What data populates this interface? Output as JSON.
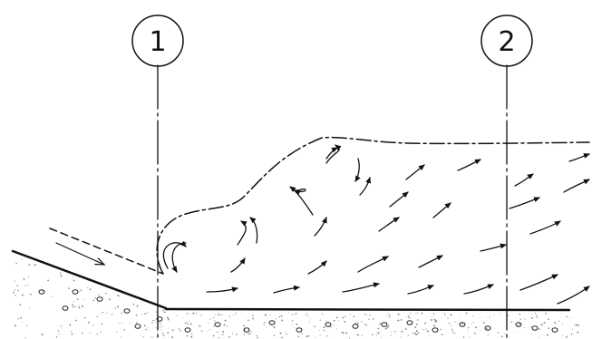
{
  "sections": [
    {
      "label": "1"
    },
    {
      "label": "2"
    }
  ],
  "colors": {
    "ink": "#111111",
    "background": "#ffffff",
    "sediment": "#777777"
  }
}
